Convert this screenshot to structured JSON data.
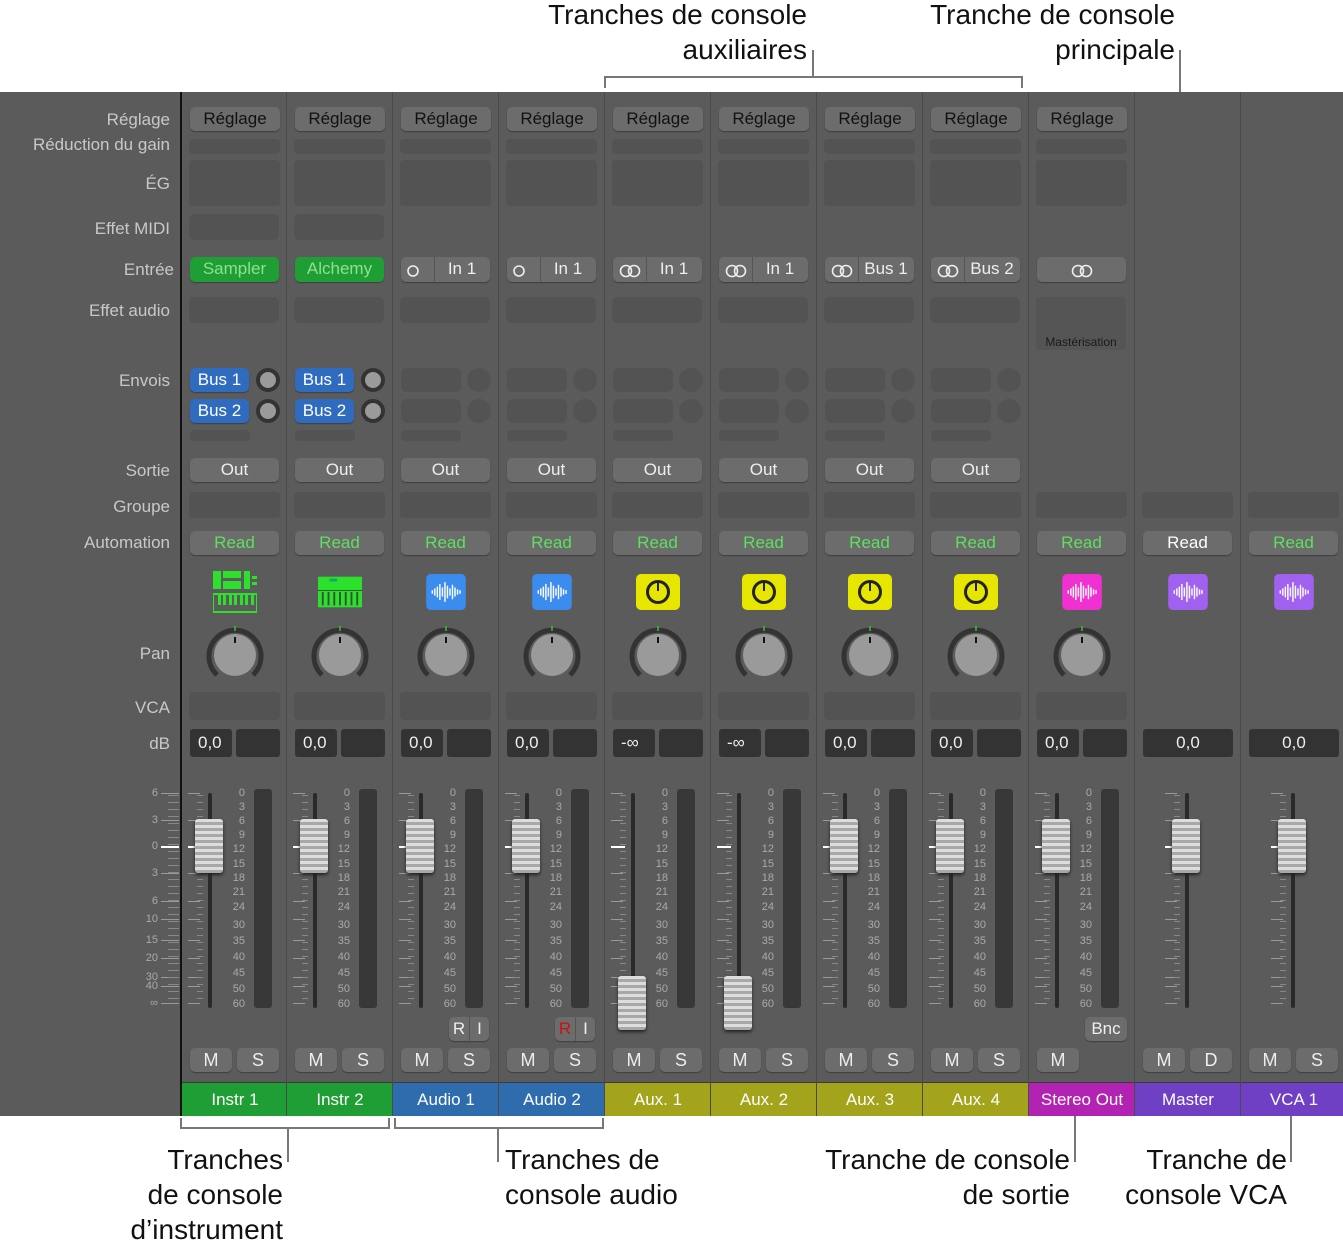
{
  "annotations": {
    "aux": "Tranches de console\nauxiliaires",
    "main": "Tranche de console\nprincipale",
    "instrument": "Tranches\nde console\nd’instrument",
    "audio": "Tranches de\nconsole audio",
    "output": "Tranche de console\nde sortie",
    "vca": "Tranche de\nconsole VCA"
  },
  "labels": {
    "setting": "Réglage",
    "gain_reduction": "Réduction du gain",
    "eq": "ÉG",
    "midi_fx": "Effet MIDI",
    "input": "Entrée",
    "audio_fx": "Effet audio",
    "sends": "Envois",
    "output": "Sortie",
    "group": "Groupe",
    "automation": "Automation",
    "pan": "Pan",
    "vca": "VCA",
    "db": "dB"
  },
  "fader_scale": [
    "6",
    "3",
    "0",
    "3",
    "6",
    "10",
    "15",
    "20",
    "30",
    "40",
    "∞"
  ],
  "meter_scale": [
    "0",
    "3",
    "6",
    "9",
    "12",
    "15",
    "18",
    "21",
    "24",
    "30",
    "35",
    "40",
    "45",
    "50",
    "60"
  ],
  "mute_label": "M",
  "solo_label": "S",
  "dim_label": "D",
  "read_label": "R",
  "input_mon_label": "I",
  "bounce_label": "Bnc",
  "colors": {
    "instrument": "#1f9e35",
    "audio": "#2f6cae",
    "aux": "#a3a31c",
    "output": "#b323b3",
    "master": "#6f3fc4",
    "automation_text": "#5ee05e"
  },
  "channels": [
    {
      "name": "Instr 1",
      "kind": "instrument",
      "setting": "Réglage",
      "midi": true,
      "input": "Sampler",
      "input_style": "plugin",
      "sends": [
        "Bus 1",
        "Bus 2"
      ],
      "output": "Out",
      "automation": "Read",
      "icon": "instrument-sampler",
      "db": "0,0",
      "fader_db": 0,
      "meter": true,
      "ms": [
        "M",
        "S"
      ]
    },
    {
      "name": "Instr 2",
      "kind": "instrument",
      "setting": "Réglage",
      "midi": true,
      "input": "Alchemy",
      "input_style": "plugin",
      "sends": [
        "Bus 1",
        "Bus 2"
      ],
      "output": "Out",
      "automation": "Read",
      "icon": "instrument-synth",
      "db": "0,0",
      "fader_db": 0,
      "meter": true,
      "ms": [
        "M",
        "S"
      ]
    },
    {
      "name": "Audio 1",
      "kind": "audio",
      "setting": "Réglage",
      "input": "In 1",
      "input_style": "mono",
      "sends": [],
      "output": "Out",
      "automation": "Read",
      "icon": "waveform",
      "db": "0,0",
      "fader_db": 0,
      "meter": true,
      "ri": true,
      "record_armed": false,
      "ms": [
        "M",
        "S"
      ]
    },
    {
      "name": "Audio 2",
      "kind": "audio",
      "setting": "Réglage",
      "input": "In 1",
      "input_style": "mono",
      "sends": [],
      "output": "Out",
      "automation": "Read",
      "icon": "waveform",
      "db": "0,0",
      "fader_db": 0,
      "meter": true,
      "ri": true,
      "record_armed": true,
      "ms": [
        "M",
        "S"
      ]
    },
    {
      "name": "Aux. 1",
      "kind": "aux",
      "setting": "Réglage",
      "input": "In 1",
      "input_style": "stereo",
      "sends": [],
      "output": "Out",
      "automation": "Read",
      "icon": "aux-knob",
      "db": "-∞",
      "fader_db": "-inf",
      "meter": true,
      "ms": [
        "M",
        "S"
      ]
    },
    {
      "name": "Aux. 2",
      "kind": "aux",
      "setting": "Réglage",
      "input": "In 1",
      "input_style": "stereo",
      "sends": [],
      "output": "Out",
      "automation": "Read",
      "icon": "aux-knob",
      "db": "-∞",
      "fader_db": "-inf",
      "meter": true,
      "ms": [
        "M",
        "S"
      ]
    },
    {
      "name": "Aux. 3",
      "kind": "aux",
      "setting": "Réglage",
      "input": "Bus 1",
      "input_style": "stereo",
      "sends": [],
      "output": "Out",
      "automation": "Read",
      "icon": "aux-knob",
      "db": "0,0",
      "fader_db": 0,
      "meter": true,
      "ms": [
        "M",
        "S"
      ]
    },
    {
      "name": "Aux. 4",
      "kind": "aux",
      "setting": "Réglage",
      "input": "Bus 2",
      "input_style": "stereo",
      "sends": [],
      "output": "Out",
      "automation": "Read",
      "icon": "aux-knob",
      "db": "0,0",
      "fader_db": 0,
      "meter": true,
      "ms": [
        "M",
        "S"
      ]
    },
    {
      "name": "Stereo Out",
      "kind": "output",
      "setting": "Réglage",
      "input": "",
      "input_style": "stereo",
      "audio_fx": "Mastérisation",
      "automation": "Read",
      "icon": "waveform",
      "db": "0,0",
      "fader_db": 0,
      "meter": true,
      "bnc": true,
      "ms": [
        "M"
      ]
    },
    {
      "name": "Master",
      "kind": "master",
      "automation": "Read",
      "icon": "waveform",
      "db": "0,0",
      "fader_db": 0,
      "meter": false,
      "ms": [
        "M",
        "D"
      ],
      "automation_white": true
    },
    {
      "name": "VCA 1",
      "kind": "master",
      "automation": "Read",
      "icon": "waveform",
      "db": "0,0",
      "fader_db": 0,
      "meter": false,
      "ms": [
        "M",
        "S"
      ]
    }
  ]
}
